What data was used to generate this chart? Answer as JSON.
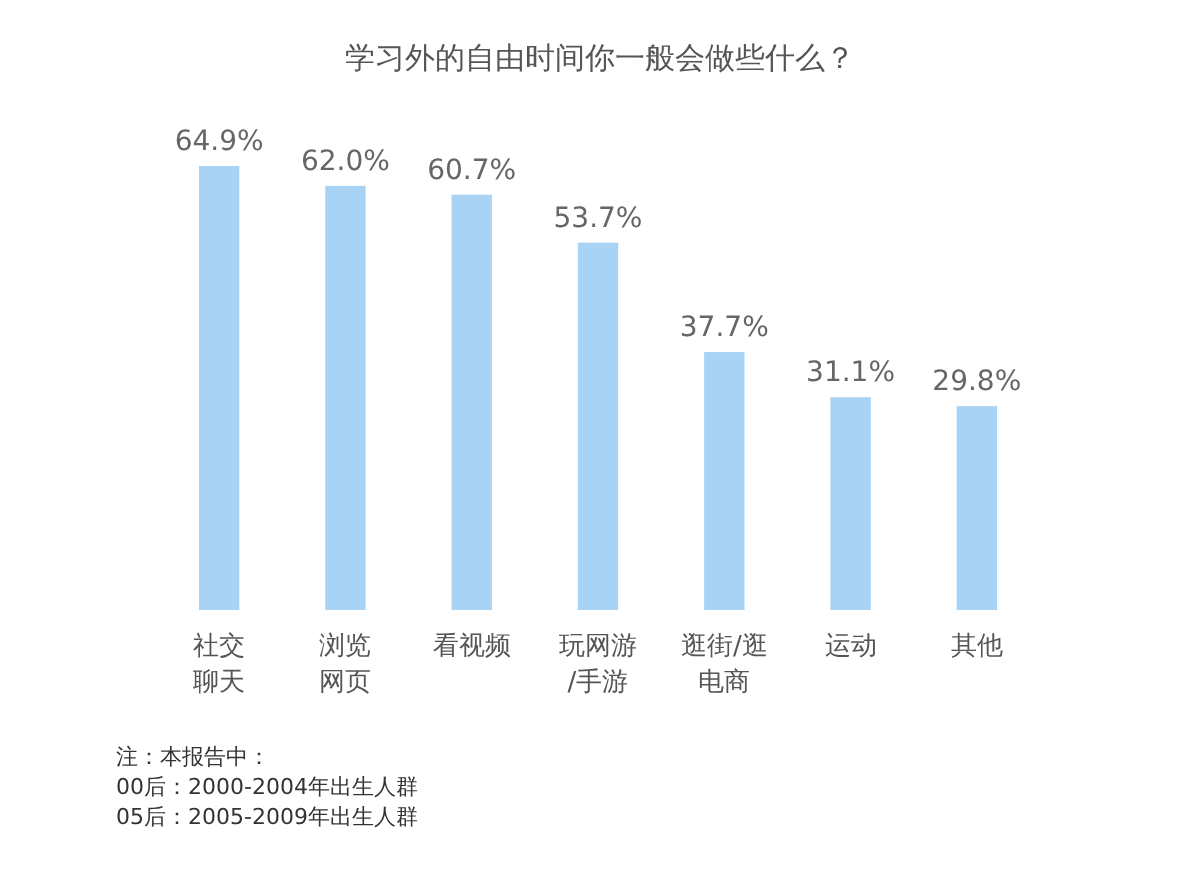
{
  "chart_data": {
    "type": "bar",
    "title": "学习外的自由时间你一般会做些什么？",
    "categories": [
      "社交聊天",
      "浏览网页",
      "看视频",
      "玩网游/手游",
      "逛街/逛电商",
      "运动",
      "其他"
    ],
    "values": [
      64.9,
      62.0,
      60.7,
      53.7,
      37.7,
      31.1,
      29.8
    ],
    "value_labels": [
      "64.9%",
      "62.0%",
      "60.7%",
      "53.7%",
      "37.7%",
      "31.1%",
      "29.8%"
    ],
    "color": "#a9d3f5",
    "annotations": [
      "注：本报告中：",
      "00后：2000-2004年出生人群",
      "05后：2005-2009年出生人群"
    ]
  }
}
